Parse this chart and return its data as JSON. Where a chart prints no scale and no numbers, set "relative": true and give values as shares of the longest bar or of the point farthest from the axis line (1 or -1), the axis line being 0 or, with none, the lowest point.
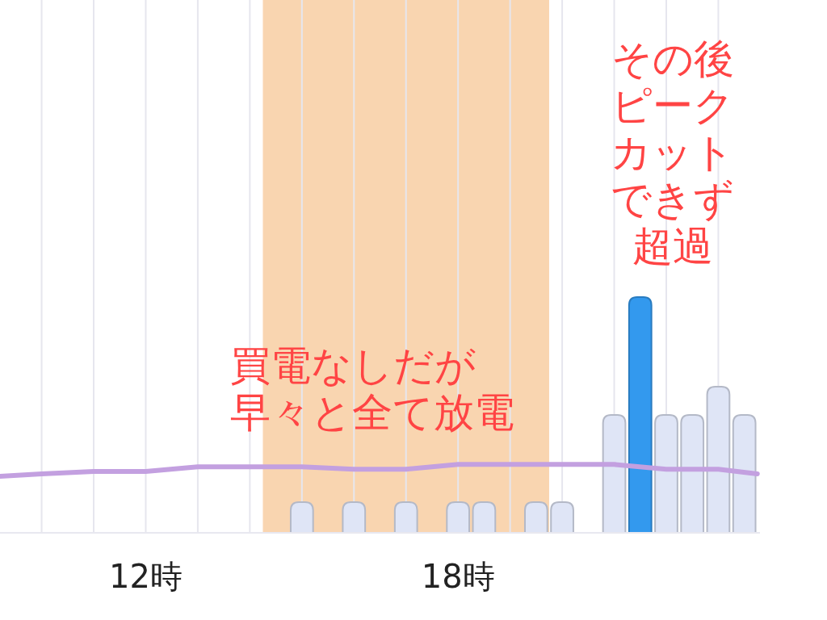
{
  "chart_data": {
    "type": "bar",
    "relative": true,
    "xlim": [
      9.2,
      23.8
    ],
    "xticks": [
      {
        "value": 10,
        "label": null
      },
      {
        "value": 11,
        "label": null
      },
      {
        "value": 12,
        "label": "12時"
      },
      {
        "value": 13,
        "label": null
      },
      {
        "value": 14,
        "label": null
      },
      {
        "value": 15,
        "label": null
      },
      {
        "value": 16,
        "label": null
      },
      {
        "value": 17,
        "label": null
      },
      {
        "value": 18,
        "label": "18時"
      },
      {
        "value": 19,
        "label": null
      },
      {
        "value": 20,
        "label": null
      },
      {
        "value": 21,
        "label": null
      },
      {
        "value": 22,
        "label": null
      },
      {
        "value": 23,
        "label": null
      }
    ],
    "grid": "x",
    "series": [
      {
        "x": [
          15,
          16,
          17,
          18,
          18.5,
          19.5,
          20,
          21,
          21.5,
          22,
          22.5,
          23,
          23.5
        ],
        "values": [
          0.13,
          0.13,
          0.13,
          0.13,
          0.13,
          0.13,
          0.13,
          0.5,
          1,
          0.5,
          0.5,
          0.62,
          0.5
        ],
        "colors": [
          "#dfe5f6",
          "#dfe5f6",
          "#dfe5f6",
          "#dfe5f6",
          "#dfe5f6",
          "#dfe5f6",
          "#dfe5f6",
          "#dfe5f6",
          "#3399ee",
          "#dfe5f6",
          "#dfe5f6",
          "#dfe5f6",
          "#dfe5f6"
        ]
      },
      {
        "type": "line",
        "color": "#c3a0e0",
        "x": [
          9.2,
          10,
          11,
          12,
          13,
          14,
          15,
          16,
          17,
          18,
          19,
          20,
          21,
          22,
          23,
          23.75
        ],
        "values": [
          0.24,
          0.25,
          0.26,
          0.26,
          0.28,
          0.28,
          0.28,
          0.27,
          0.27,
          0.29,
          0.29,
          0.29,
          0.29,
          0.27,
          0.27,
          0.25
        ]
      }
    ],
    "bands": [
      {
        "axis": "x",
        "from": 14.25,
        "to": 19.75,
        "color": "#f9d5b0"
      }
    ],
    "annotations": [
      {
        "text": "その後ピークカットできず超過",
        "x": 21.5,
        "y": 1
      },
      "買電なしだが早々と全て放電"
    ]
  }
}
